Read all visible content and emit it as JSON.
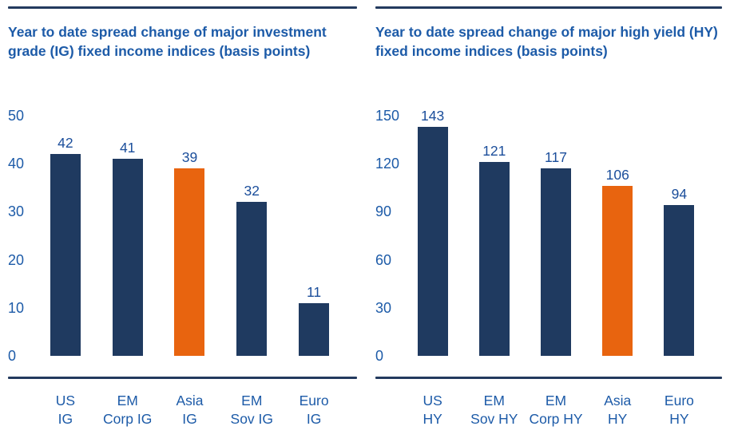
{
  "page": {
    "background": "#ffffff"
  },
  "colors": {
    "bar_navy": "#1f3a60",
    "bar_orange": "#e8640f",
    "title_blue": "#1d5ba8",
    "tick_blue": "#1d5ba8",
    "value_label_blue": "#1b4e9b",
    "rule_navy": "#233a5e"
  },
  "chart_data": [
    {
      "type": "bar",
      "title": "Year to date spread change of major investment grade (IG) fixed income indices (basis points)",
      "categories": [
        "US IG",
        "EM Corp IG",
        "Asia IG",
        "EM Sov IG",
        "Euro IG"
      ],
      "category_lines": [
        [
          "US",
          "IG"
        ],
        [
          "EM",
          "Corp IG"
        ],
        [
          "Asia",
          "IG"
        ],
        [
          "EM",
          "Sov IG"
        ],
        [
          "Euro",
          "IG"
        ]
      ],
      "values": [
        42,
        41,
        39,
        32,
        11
      ],
      "highlight_index": 2,
      "highlight_category": "Asia IG",
      "yticks": [
        0,
        10,
        20,
        30,
        40,
        50
      ],
      "ylim": [
        0,
        50
      ],
      "grid": false,
      "value_labels": true,
      "legend_position": "none"
    },
    {
      "type": "bar",
      "title": "Year to date spread change of major high yield (HY) fixed income indices (basis points)",
      "categories": [
        "US HY",
        "EM Sov HY",
        "EM Corp HY",
        "Asia HY",
        "Euro HY"
      ],
      "category_lines": [
        [
          "US",
          "HY"
        ],
        [
          "EM",
          "Sov HY"
        ],
        [
          "EM",
          "Corp HY"
        ],
        [
          "Asia",
          "HY"
        ],
        [
          "Euro",
          "HY"
        ]
      ],
      "values": [
        143,
        121,
        117,
        106,
        94
      ],
      "highlight_index": 3,
      "highlight_category": "Asia HY",
      "yticks": [
        0,
        30,
        60,
        90,
        120,
        150
      ],
      "ylim": [
        0,
        150
      ],
      "grid": false,
      "value_labels": true,
      "legend_position": "none"
    }
  ]
}
